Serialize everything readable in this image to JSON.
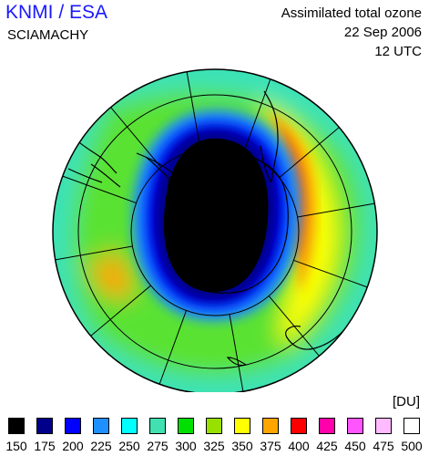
{
  "header": {
    "agency": "KNMI / ESA",
    "instrument": "SCIAMACHY",
    "product": "Assimilated total ozone",
    "date": "22 Sep 2006",
    "time": "12 UTC"
  },
  "legend": {
    "unit": "[DU]",
    "ticks": [
      "150",
      "175",
      "200",
      "225",
      "250",
      "275",
      "300",
      "325",
      "350",
      "375",
      "400",
      "425",
      "450",
      "475",
      "500"
    ],
    "colors": [
      "#000000",
      "#00008b",
      "#0000ff",
      "#1e90ff",
      "#00ffff",
      "#40e0b0",
      "#00e000",
      "#99e000",
      "#ffff00",
      "#ffa500",
      "#ff0000",
      "#ff00aa",
      "#ff55ff",
      "#ffbbff",
      "#ffffff"
    ]
  },
  "map": {
    "projection": "south polar stereographic",
    "features": [
      "ozone-field",
      "antarctica-coastline",
      "south-america-coastline",
      "south-africa-coastline",
      "australia-coastline",
      "latitude-circles",
      "longitude-meridians"
    ]
  }
}
